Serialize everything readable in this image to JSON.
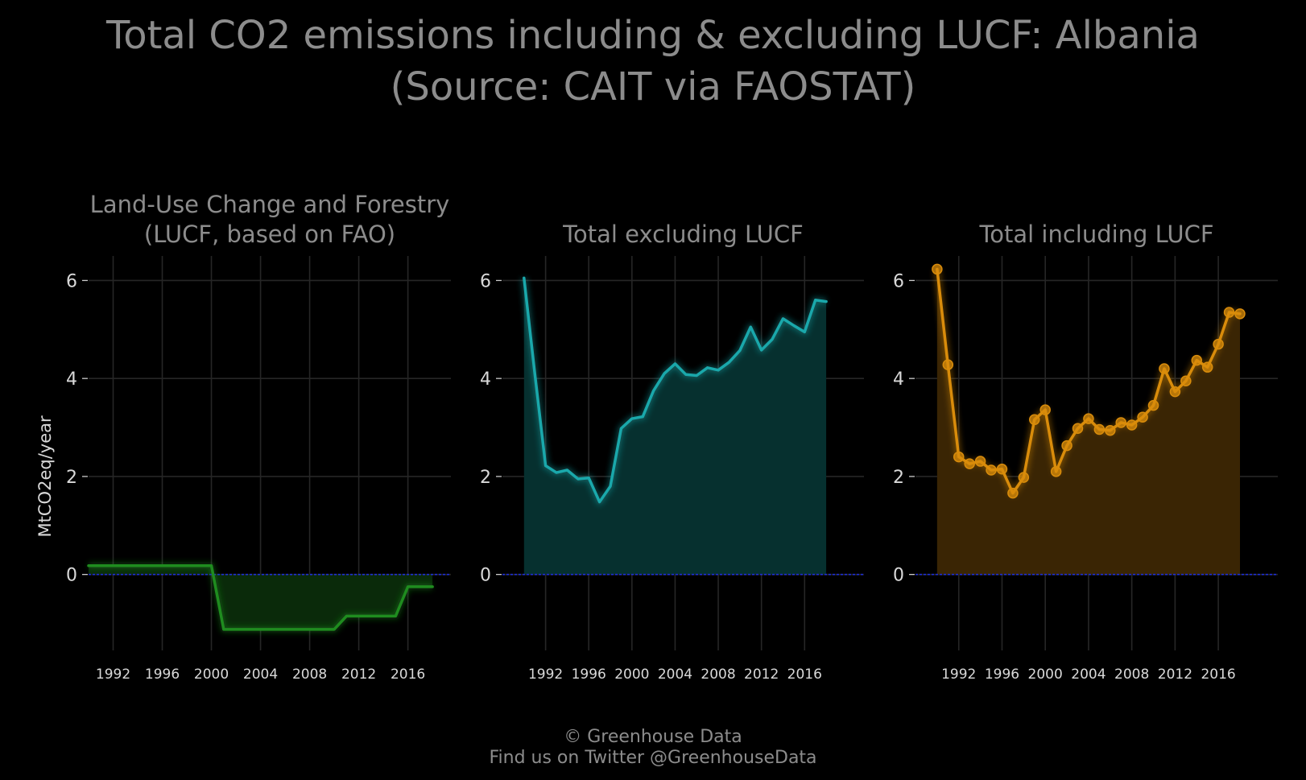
{
  "title_line1": "Total CO2 emissions including & excluding LUCF: Albania",
  "title_line2": "(Source: CAIT via FAOSTAT)",
  "caption_line1": "© Greenhouse Data",
  "caption_line2": "Find us on Twitter @GreenhouseData",
  "chart_data": [
    {
      "type": "area",
      "title_line1": "Land-Use Change and Forestry",
      "title_line2": "(LUCF, based on FAO)",
      "ylabel": "MtCO2eq/year",
      "color": "#1f8c1f",
      "fill": "#0a2a0a",
      "markers": false,
      "x": [
        1990,
        1991,
        1992,
        1993,
        1994,
        1995,
        1996,
        1997,
        1998,
        1999,
        2000,
        2001,
        2002,
        2003,
        2004,
        2005,
        2006,
        2007,
        2008,
        2009,
        2010,
        2011,
        2012,
        2013,
        2014,
        2015,
        2016,
        2017,
        2018
      ],
      "y": [
        0.18,
        0.18,
        0.18,
        0.18,
        0.18,
        0.18,
        0.18,
        0.18,
        0.18,
        0.18,
        0.18,
        -1.12,
        -1.12,
        -1.12,
        -1.12,
        -1.12,
        -1.12,
        -1.12,
        -1.12,
        -1.12,
        -1.12,
        -0.85,
        -0.85,
        -0.85,
        -0.85,
        -0.85,
        -0.25,
        -0.25,
        -0.25
      ],
      "xticks": [
        1992,
        1996,
        2000,
        2004,
        2008,
        2012,
        2016
      ],
      "yticks": [
        0,
        2,
        4,
        6
      ],
      "xlim": [
        1990,
        2019.5
      ],
      "ylim": [
        -1.55,
        6.5
      ],
      "grid": true
    },
    {
      "type": "area",
      "title": "Total excluding LUCF",
      "color": "#1aa8ab",
      "fill": "#06302f",
      "markers": false,
      "x": [
        1990,
        1991,
        1992,
        1993,
        1994,
        1995,
        1996,
        1997,
        1998,
        1999,
        2000,
        2001,
        2002,
        2003,
        2004,
        2005,
        2006,
        2007,
        2008,
        2009,
        2010,
        2011,
        2012,
        2013,
        2014,
        2015,
        2016,
        2017,
        2018
      ],
      "y": [
        6.05,
        4.1,
        2.22,
        2.08,
        2.13,
        1.95,
        1.97,
        1.48,
        1.8,
        2.98,
        3.18,
        3.22,
        3.75,
        4.1,
        4.3,
        4.08,
        4.06,
        4.22,
        4.17,
        4.33,
        4.57,
        5.05,
        4.58,
        4.8,
        5.22,
        5.08,
        4.95,
        5.6,
        5.57
      ],
      "xticks": [
        1992,
        1996,
        2000,
        2004,
        2008,
        2012,
        2016
      ],
      "yticks": [
        0,
        2,
        4,
        6
      ],
      "xlim": [
        1988,
        2021.5
      ],
      "ylim": [
        -1.55,
        6.5
      ],
      "grid": true
    },
    {
      "type": "area",
      "title": "Total including LUCF",
      "color": "#d98c0b",
      "fill": "#3a2504",
      "markers": true,
      "x": [
        1990,
        1991,
        1992,
        1993,
        1994,
        1995,
        1996,
        1997,
        1998,
        1999,
        2000,
        2001,
        2002,
        2003,
        2004,
        2005,
        2006,
        2007,
        2008,
        2009,
        2010,
        2011,
        2012,
        2013,
        2014,
        2015,
        2016,
        2017,
        2018
      ],
      "y": [
        6.23,
        4.28,
        2.4,
        2.26,
        2.31,
        2.13,
        2.15,
        1.66,
        1.98,
        3.16,
        3.36,
        2.1,
        2.63,
        2.98,
        3.18,
        2.96,
        2.94,
        3.1,
        3.05,
        3.21,
        3.45,
        4.2,
        3.73,
        3.95,
        4.37,
        4.23,
        4.7,
        5.35,
        5.32
      ],
      "xticks": [
        1992,
        1996,
        2000,
        2004,
        2008,
        2012,
        2016
      ],
      "yticks": [
        0,
        2,
        4,
        6
      ],
      "xlim": [
        1988,
        2021.5
      ],
      "ylim": [
        -1.55,
        6.5
      ],
      "grid": true
    }
  ]
}
